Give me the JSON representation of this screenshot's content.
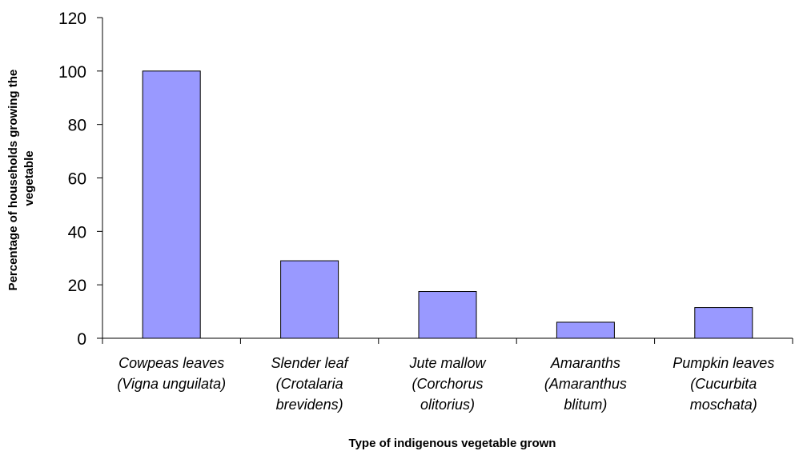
{
  "chart_data": {
    "type": "bar",
    "title": "",
    "xlabel": "Type of indigenous vegetable grown",
    "ylabel_lines": [
      "Percentage of households growing the",
      "vegetable"
    ],
    "ylim": [
      0,
      120
    ],
    "yticks": [
      "0",
      "20",
      "40",
      "60",
      "80",
      "100",
      "120"
    ],
    "grid": false,
    "legend": "none",
    "bar_color": "#9999ff",
    "categories": [
      [
        "Cowpeas leaves",
        "(Vigna unguilata)"
      ],
      [
        "Slender leaf",
        "(Crotalaria",
        "brevidens)"
      ],
      [
        "Jute mallow",
        "(Corchorus",
        "olitorius)"
      ],
      [
        "Amaranths",
        "(Amaranthus",
        "blitum)"
      ],
      [
        "Pumpkin leaves",
        "(Cucurbita",
        "moschata)"
      ]
    ],
    "values": [
      100,
      29,
      17.5,
      6,
      11.5
    ]
  }
}
